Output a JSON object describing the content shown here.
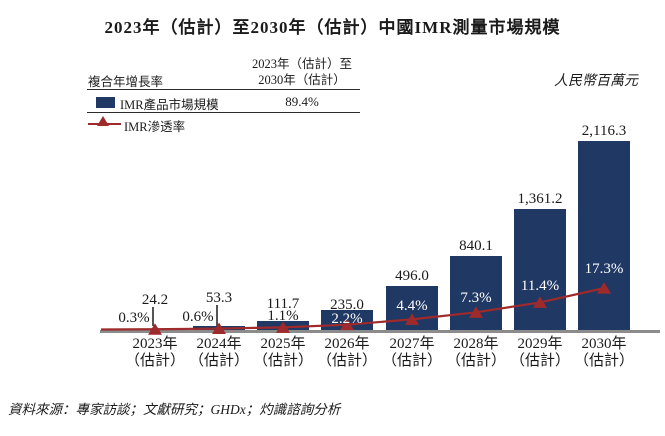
{
  "title": "2023年（估計）至2030年（估計）中國IMR測量市場規模",
  "unit_label": "人民幣百萬元",
  "legend_table": {
    "cagr_header": "複合年增長率",
    "period_header_line1": "2023年（估計）至",
    "period_header_line2": "2030年（估計）",
    "bar_row": {
      "label": "IMR產品市場規模",
      "cagr_value": "89.4%"
    },
    "line_row": {
      "label": "IMR滲透率"
    }
  },
  "source_note": "資料來源：專家訪談；文獻研究；GHDx；灼識諮詢分析",
  "colors": {
    "bar": "#1f3864",
    "line": "#9e2a2b",
    "axis": "#8c8c8c",
    "text": "#1a1a1a",
    "inside_label": "#ffffff"
  },
  "chart_data": {
    "type": "bar+line combo",
    "title": "2023年（估計）至2030年（估計）中國IMR測量市場規模",
    "unit": "人民幣百萬元",
    "categories": [
      "2023年",
      "2024年",
      "2025年",
      "2026年",
      "2027年",
      "2028年",
      "2029年",
      "2030年"
    ],
    "category_suffix": "（估計）",
    "series": [
      {
        "name": "IMR產品市場規模",
        "type": "bar",
        "color": "#1f3864",
        "cagr_2023_2030": "89.4%",
        "values": [
          24.2,
          53.3,
          111.7,
          235.0,
          496.0,
          840.1,
          1361.2,
          2116.3
        ],
        "value_labels": [
          "24.2",
          "53.3",
          "111.7",
          "235.0",
          "496.0",
          "840.1",
          "1,361.2",
          "2,116.3"
        ]
      },
      {
        "name": "IMR滲透率",
        "type": "line",
        "color": "#9e2a2b",
        "marker": "triangle-up",
        "values_percent": [
          0.3,
          0.6,
          1.1,
          2.2,
          4.4,
          7.3,
          11.4,
          17.3
        ],
        "value_labels": [
          "0.3%",
          "0.6%",
          "1.1%",
          "2.2%",
          "4.4%",
          "7.3%",
          "11.4%",
          "17.3%"
        ],
        "label_placement": [
          "outside",
          "outside",
          "outside",
          "inside",
          "inside",
          "inside",
          "inside",
          "inside"
        ]
      }
    ],
    "leader_line_indices": [
      0,
      1
    ],
    "axis": {
      "value_axis_visible": false,
      "grid": false,
      "baseline": true
    }
  }
}
